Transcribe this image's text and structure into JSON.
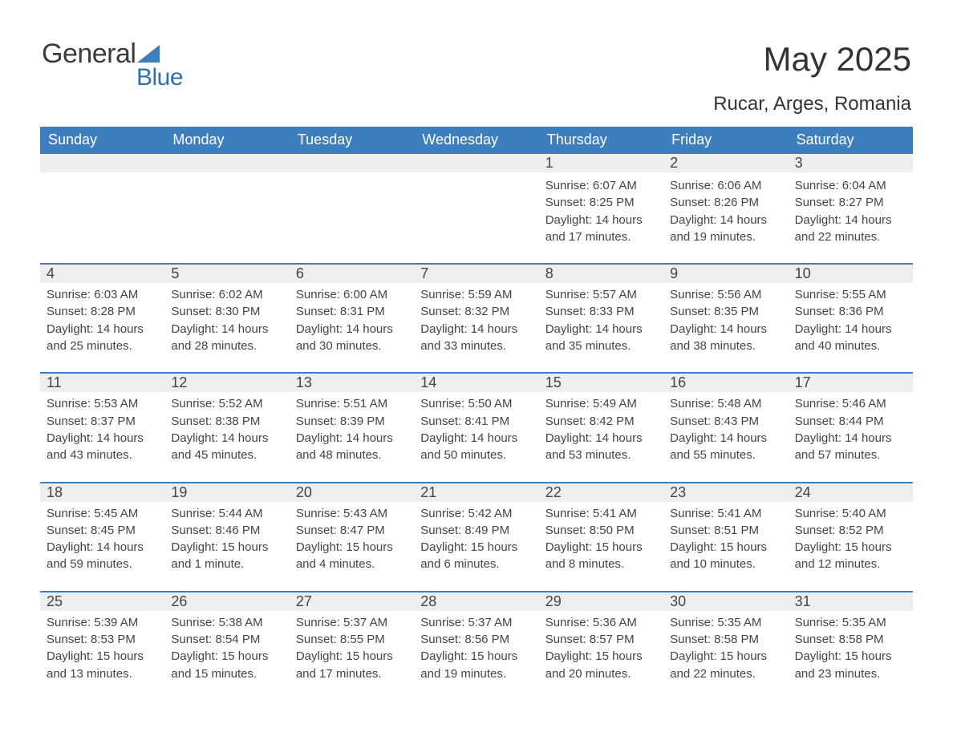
{
  "logo": {
    "word1": "General",
    "word2": "Blue",
    "triangle_color": "#3d7ebd"
  },
  "title": "May 2025",
  "subtitle": "Rucar, Arges, Romania",
  "colors": {
    "header_bg": "#3d7ebd",
    "header_fg": "#ffffff",
    "daynum_bg": "#eeeeee",
    "text": "#444444",
    "page_bg": "#ffffff",
    "rule": "#3d7ebd",
    "logo_gray": "#3a3a3a",
    "logo_blue": "#2f6fac"
  },
  "fonts": {
    "title_size": 42,
    "subtitle_size": 24,
    "dow_size": 18,
    "daynum_size": 18,
    "body_size": 15,
    "family": "Arial, Helvetica, sans-serif"
  },
  "days_of_week": [
    "Sunday",
    "Monday",
    "Tuesday",
    "Wednesday",
    "Thursday",
    "Friday",
    "Saturday"
  ],
  "first_weekday_index": 4,
  "days": [
    {
      "n": 1,
      "sunrise": "6:07 AM",
      "sunset": "8:25 PM",
      "daylight": "14 hours and 17 minutes."
    },
    {
      "n": 2,
      "sunrise": "6:06 AM",
      "sunset": "8:26 PM",
      "daylight": "14 hours and 19 minutes."
    },
    {
      "n": 3,
      "sunrise": "6:04 AM",
      "sunset": "8:27 PM",
      "daylight": "14 hours and 22 minutes."
    },
    {
      "n": 4,
      "sunrise": "6:03 AM",
      "sunset": "8:28 PM",
      "daylight": "14 hours and 25 minutes."
    },
    {
      "n": 5,
      "sunrise": "6:02 AM",
      "sunset": "8:30 PM",
      "daylight": "14 hours and 28 minutes."
    },
    {
      "n": 6,
      "sunrise": "6:00 AM",
      "sunset": "8:31 PM",
      "daylight": "14 hours and 30 minutes."
    },
    {
      "n": 7,
      "sunrise": "5:59 AM",
      "sunset": "8:32 PM",
      "daylight": "14 hours and 33 minutes."
    },
    {
      "n": 8,
      "sunrise": "5:57 AM",
      "sunset": "8:33 PM",
      "daylight": "14 hours and 35 minutes."
    },
    {
      "n": 9,
      "sunrise": "5:56 AM",
      "sunset": "8:35 PM",
      "daylight": "14 hours and 38 minutes."
    },
    {
      "n": 10,
      "sunrise": "5:55 AM",
      "sunset": "8:36 PM",
      "daylight": "14 hours and 40 minutes."
    },
    {
      "n": 11,
      "sunrise": "5:53 AM",
      "sunset": "8:37 PM",
      "daylight": "14 hours and 43 minutes."
    },
    {
      "n": 12,
      "sunrise": "5:52 AM",
      "sunset": "8:38 PM",
      "daylight": "14 hours and 45 minutes."
    },
    {
      "n": 13,
      "sunrise": "5:51 AM",
      "sunset": "8:39 PM",
      "daylight": "14 hours and 48 minutes."
    },
    {
      "n": 14,
      "sunrise": "5:50 AM",
      "sunset": "8:41 PM",
      "daylight": "14 hours and 50 minutes."
    },
    {
      "n": 15,
      "sunrise": "5:49 AM",
      "sunset": "8:42 PM",
      "daylight": "14 hours and 53 minutes."
    },
    {
      "n": 16,
      "sunrise": "5:48 AM",
      "sunset": "8:43 PM",
      "daylight": "14 hours and 55 minutes."
    },
    {
      "n": 17,
      "sunrise": "5:46 AM",
      "sunset": "8:44 PM",
      "daylight": "14 hours and 57 minutes."
    },
    {
      "n": 18,
      "sunrise": "5:45 AM",
      "sunset": "8:45 PM",
      "daylight": "14 hours and 59 minutes."
    },
    {
      "n": 19,
      "sunrise": "5:44 AM",
      "sunset": "8:46 PM",
      "daylight": "15 hours and 1 minute."
    },
    {
      "n": 20,
      "sunrise": "5:43 AM",
      "sunset": "8:47 PM",
      "daylight": "15 hours and 4 minutes."
    },
    {
      "n": 21,
      "sunrise": "5:42 AM",
      "sunset": "8:49 PM",
      "daylight": "15 hours and 6 minutes."
    },
    {
      "n": 22,
      "sunrise": "5:41 AM",
      "sunset": "8:50 PM",
      "daylight": "15 hours and 8 minutes."
    },
    {
      "n": 23,
      "sunrise": "5:41 AM",
      "sunset": "8:51 PM",
      "daylight": "15 hours and 10 minutes."
    },
    {
      "n": 24,
      "sunrise": "5:40 AM",
      "sunset": "8:52 PM",
      "daylight": "15 hours and 12 minutes."
    },
    {
      "n": 25,
      "sunrise": "5:39 AM",
      "sunset": "8:53 PM",
      "daylight": "15 hours and 13 minutes."
    },
    {
      "n": 26,
      "sunrise": "5:38 AM",
      "sunset": "8:54 PM",
      "daylight": "15 hours and 15 minutes."
    },
    {
      "n": 27,
      "sunrise": "5:37 AM",
      "sunset": "8:55 PM",
      "daylight": "15 hours and 17 minutes."
    },
    {
      "n": 28,
      "sunrise": "5:37 AM",
      "sunset": "8:56 PM",
      "daylight": "15 hours and 19 minutes."
    },
    {
      "n": 29,
      "sunrise": "5:36 AM",
      "sunset": "8:57 PM",
      "daylight": "15 hours and 20 minutes."
    },
    {
      "n": 30,
      "sunrise": "5:35 AM",
      "sunset": "8:58 PM",
      "daylight": "15 hours and 22 minutes."
    },
    {
      "n": 31,
      "sunrise": "5:35 AM",
      "sunset": "8:58 PM",
      "daylight": "15 hours and 23 minutes."
    }
  ],
  "labels": {
    "sunrise_prefix": "Sunrise: ",
    "sunset_prefix": "Sunset: ",
    "daylight_prefix": "Daylight: "
  }
}
